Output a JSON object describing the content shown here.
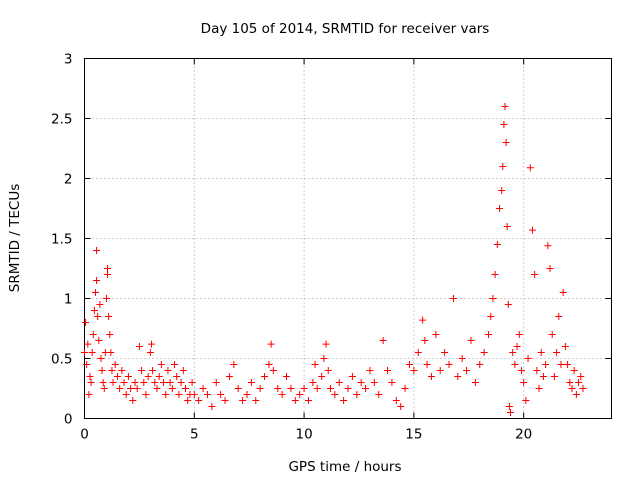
{
  "chart_data": {
    "type": "scatter",
    "title": "Day 105 of 2014, SRMTID for receiver vars",
    "xlabel": "GPS time / hours",
    "ylabel": "SRMTID / TECUs",
    "xlim": [
      0,
      24
    ],
    "ylim": [
      0,
      3
    ],
    "xticks": [
      0,
      5,
      10,
      15,
      20
    ],
    "yticks": [
      0,
      0.5,
      1,
      1.5,
      2,
      2.5,
      3
    ],
    "xtick_labels": [
      "0",
      "5",
      "10",
      "15",
      "20"
    ],
    "ytick_labels": [
      "0",
      "0.5",
      "1",
      "1.5",
      "2",
      "2.5",
      "3"
    ],
    "grid": true,
    "marker": "+",
    "series": [
      {
        "name": "SRMTID",
        "color": "#ff0000",
        "points": [
          [
            0.0,
            0.55
          ],
          [
            0.05,
            0.8
          ],
          [
            0.1,
            0.45
          ],
          [
            0.15,
            0.62
          ],
          [
            0.2,
            0.2
          ],
          [
            0.25,
            0.35
          ],
          [
            0.3,
            0.3
          ],
          [
            0.35,
            0.55
          ],
          [
            0.4,
            0.7
          ],
          [
            0.45,
            0.9
          ],
          [
            0.5,
            1.05
          ],
          [
            0.55,
            1.15
          ],
          [
            0.55,
            1.4
          ],
          [
            0.6,
            0.85
          ],
          [
            0.65,
            0.65
          ],
          [
            0.7,
            0.95
          ],
          [
            0.75,
            0.5
          ],
          [
            0.8,
            0.4
          ],
          [
            0.85,
            0.3
          ],
          [
            0.9,
            0.25
          ],
          [
            0.95,
            0.55
          ],
          [
            1.0,
            1.0
          ],
          [
            1.05,
            1.25
          ],
          [
            1.05,
            1.2
          ],
          [
            1.1,
            0.85
          ],
          [
            1.15,
            0.7
          ],
          [
            1.2,
            0.55
          ],
          [
            1.25,
            0.4
          ],
          [
            1.3,
            0.3
          ],
          [
            1.4,
            0.45
          ],
          [
            1.5,
            0.35
          ],
          [
            1.6,
            0.25
          ],
          [
            1.7,
            0.4
          ],
          [
            1.8,
            0.3
          ],
          [
            1.9,
            0.2
          ],
          [
            2.0,
            0.35
          ],
          [
            2.1,
            0.25
          ],
          [
            2.2,
            0.15
          ],
          [
            2.3,
            0.3
          ],
          [
            2.4,
            0.25
          ],
          [
            2.5,
            0.6
          ],
          [
            2.6,
            0.4
          ],
          [
            2.7,
            0.3
          ],
          [
            2.8,
            0.2
          ],
          [
            2.9,
            0.35
          ],
          [
            3.0,
            0.55
          ],
          [
            3.05,
            0.62
          ],
          [
            3.1,
            0.4
          ],
          [
            3.2,
            0.3
          ],
          [
            3.3,
            0.25
          ],
          [
            3.4,
            0.35
          ],
          [
            3.5,
            0.45
          ],
          [
            3.6,
            0.3
          ],
          [
            3.7,
            0.2
          ],
          [
            3.8,
            0.4
          ],
          [
            3.9,
            0.3
          ],
          [
            4.0,
            0.25
          ],
          [
            4.1,
            0.45
          ],
          [
            4.2,
            0.35
          ],
          [
            4.3,
            0.2
          ],
          [
            4.4,
            0.3
          ],
          [
            4.5,
            0.4
          ],
          [
            4.6,
            0.25
          ],
          [
            4.7,
            0.15
          ],
          [
            4.8,
            0.2
          ],
          [
            4.9,
            0.3
          ],
          [
            5.0,
            0.2
          ],
          [
            5.2,
            0.15
          ],
          [
            5.4,
            0.25
          ],
          [
            5.6,
            0.2
          ],
          [
            5.8,
            0.1
          ],
          [
            6.0,
            0.3
          ],
          [
            6.2,
            0.2
          ],
          [
            6.4,
            0.15
          ],
          [
            6.6,
            0.35
          ],
          [
            6.8,
            0.45
          ],
          [
            7.0,
            0.25
          ],
          [
            7.2,
            0.15
          ],
          [
            7.4,
            0.2
          ],
          [
            7.6,
            0.3
          ],
          [
            7.8,
            0.15
          ],
          [
            8.0,
            0.25
          ],
          [
            8.2,
            0.35
          ],
          [
            8.4,
            0.45
          ],
          [
            8.5,
            0.62
          ],
          [
            8.6,
            0.4
          ],
          [
            8.8,
            0.25
          ],
          [
            9.0,
            0.2
          ],
          [
            9.2,
            0.35
          ],
          [
            9.4,
            0.25
          ],
          [
            9.6,
            0.15
          ],
          [
            9.8,
            0.2
          ],
          [
            10.0,
            0.25
          ],
          [
            10.2,
            0.15
          ],
          [
            10.4,
            0.3
          ],
          [
            10.5,
            0.45
          ],
          [
            10.6,
            0.25
          ],
          [
            10.8,
            0.35
          ],
          [
            10.9,
            0.5
          ],
          [
            11.0,
            0.62
          ],
          [
            11.1,
            0.4
          ],
          [
            11.2,
            0.25
          ],
          [
            11.4,
            0.2
          ],
          [
            11.6,
            0.3
          ],
          [
            11.8,
            0.15
          ],
          [
            12.0,
            0.25
          ],
          [
            12.2,
            0.35
          ],
          [
            12.4,
            0.2
          ],
          [
            12.6,
            0.3
          ],
          [
            12.8,
            0.25
          ],
          [
            13.0,
            0.4
          ],
          [
            13.2,
            0.3
          ],
          [
            13.4,
            0.2
          ],
          [
            13.6,
            0.65
          ],
          [
            13.8,
            0.4
          ],
          [
            14.0,
            0.3
          ],
          [
            14.2,
            0.15
          ],
          [
            14.4,
            0.1
          ],
          [
            14.6,
            0.25
          ],
          [
            14.8,
            0.45
          ],
          [
            15.0,
            0.4
          ],
          [
            15.2,
            0.55
          ],
          [
            15.4,
            0.82
          ],
          [
            15.5,
            0.65
          ],
          [
            15.6,
            0.45
          ],
          [
            15.8,
            0.35
          ],
          [
            16.0,
            0.7
          ],
          [
            16.2,
            0.4
          ],
          [
            16.4,
            0.55
          ],
          [
            16.6,
            0.45
          ],
          [
            16.8,
            1.0
          ],
          [
            17.0,
            0.35
          ],
          [
            17.2,
            0.5
          ],
          [
            17.4,
            0.4
          ],
          [
            17.6,
            0.65
          ],
          [
            17.8,
            0.3
          ],
          [
            18.0,
            0.45
          ],
          [
            18.2,
            0.55
          ],
          [
            18.4,
            0.7
          ],
          [
            18.5,
            0.85
          ],
          [
            18.6,
            1.0
          ],
          [
            18.7,
            1.2
          ],
          [
            18.8,
            1.45
          ],
          [
            18.9,
            1.75
          ],
          [
            19.0,
            1.9
          ],
          [
            19.05,
            2.1
          ],
          [
            19.1,
            2.45
          ],
          [
            19.15,
            2.6
          ],
          [
            19.2,
            2.3
          ],
          [
            19.25,
            1.6
          ],
          [
            19.3,
            0.95
          ],
          [
            19.35,
            0.1
          ],
          [
            19.4,
            0.05
          ],
          [
            19.5,
            0.55
          ],
          [
            19.6,
            0.45
          ],
          [
            19.7,
            0.6
          ],
          [
            19.8,
            0.7
          ],
          [
            19.9,
            0.4
          ],
          [
            20.0,
            0.3
          ],
          [
            20.1,
            0.15
          ],
          [
            20.2,
            0.5
          ],
          [
            20.3,
            2.09
          ],
          [
            20.4,
            1.57
          ],
          [
            20.5,
            1.2
          ],
          [
            20.6,
            0.4
          ],
          [
            20.7,
            0.25
          ],
          [
            20.8,
            0.55
          ],
          [
            20.9,
            0.35
          ],
          [
            21.0,
            0.45
          ],
          [
            21.1,
            1.44
          ],
          [
            21.2,
            1.25
          ],
          [
            21.3,
            0.7
          ],
          [
            21.4,
            0.35
          ],
          [
            21.5,
            0.55
          ],
          [
            21.6,
            0.85
          ],
          [
            21.7,
            0.45
          ],
          [
            21.8,
            1.05
          ],
          [
            21.9,
            0.6
          ],
          [
            22.0,
            0.45
          ],
          [
            22.1,
            0.3
          ],
          [
            22.2,
            0.25
          ],
          [
            22.3,
            0.4
          ],
          [
            22.4,
            0.2
          ],
          [
            22.5,
            0.3
          ],
          [
            22.6,
            0.35
          ],
          [
            22.7,
            0.25
          ]
        ]
      }
    ]
  }
}
